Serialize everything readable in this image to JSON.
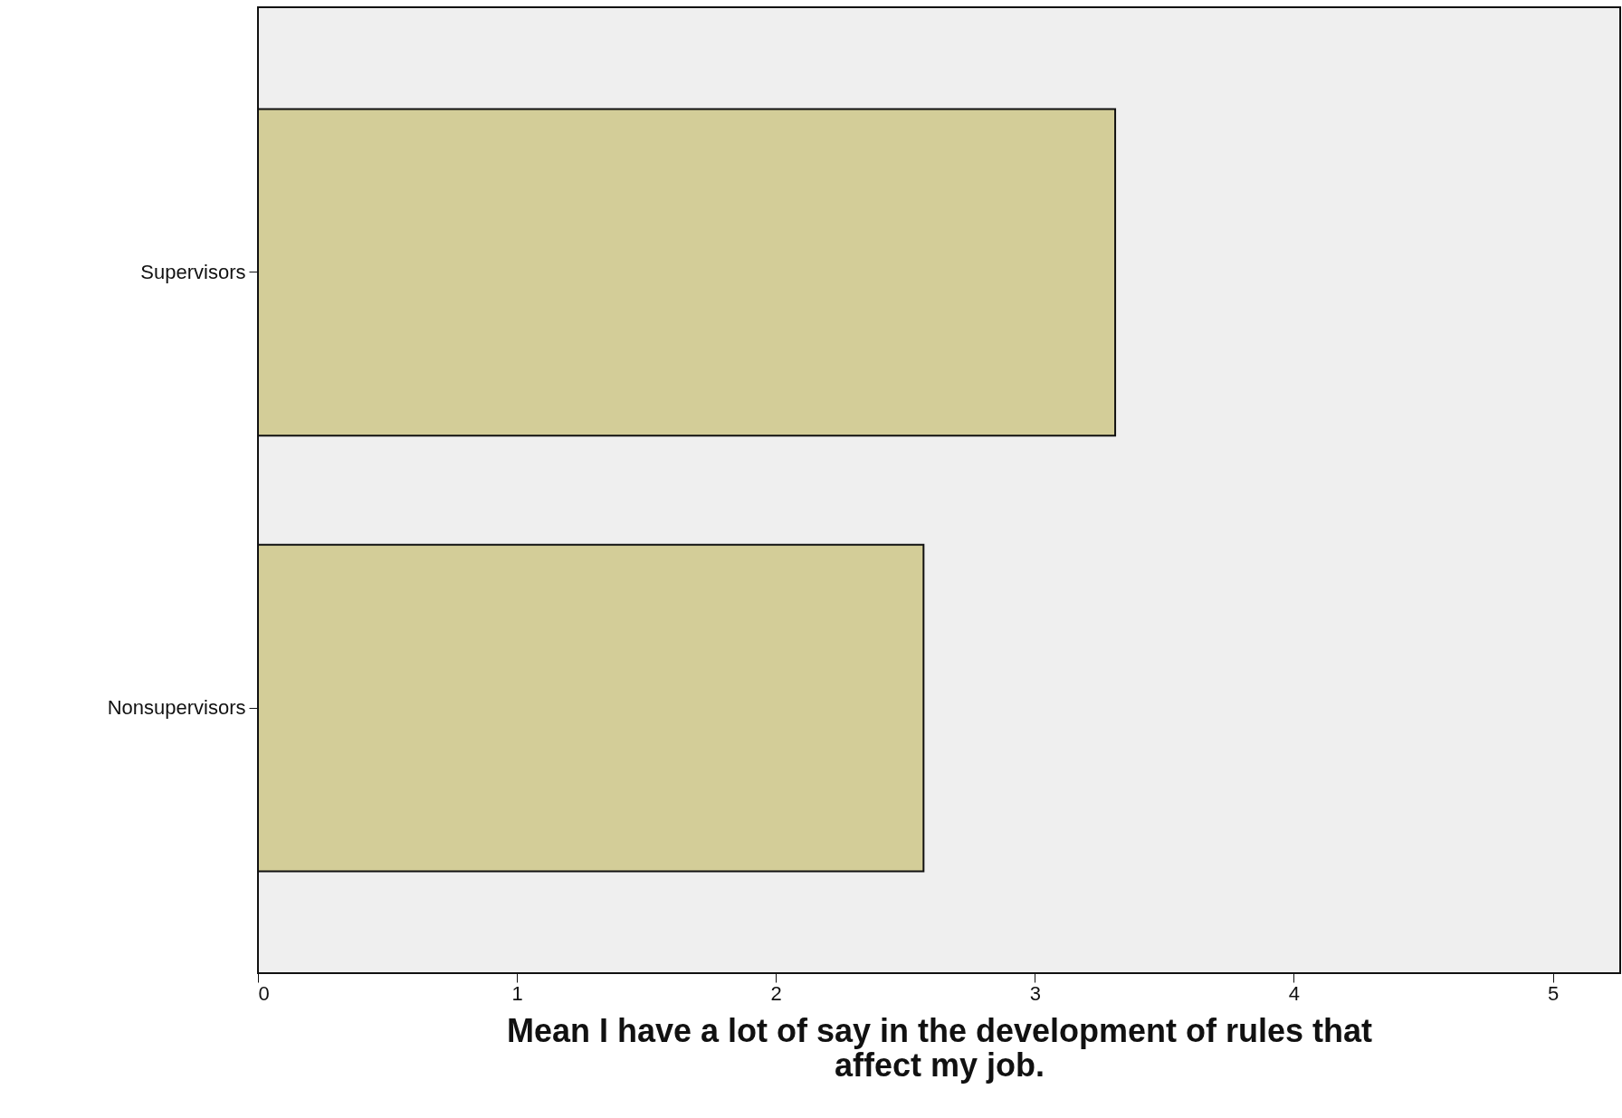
{
  "chart_data": {
    "type": "bar",
    "orientation": "horizontal",
    "categories": [
      "Supervisors",
      "Nonsupervisors"
    ],
    "values": [
      3.31,
      2.57
    ],
    "color": "#d3cd98",
    "xlabel": "Mean I have a lot of say in the development of rules that affect my job.",
    "xlim": [
      0,
      5.26
    ],
    "xticks": [
      0,
      1,
      2,
      3,
      4,
      5
    ],
    "grid": false
  }
}
